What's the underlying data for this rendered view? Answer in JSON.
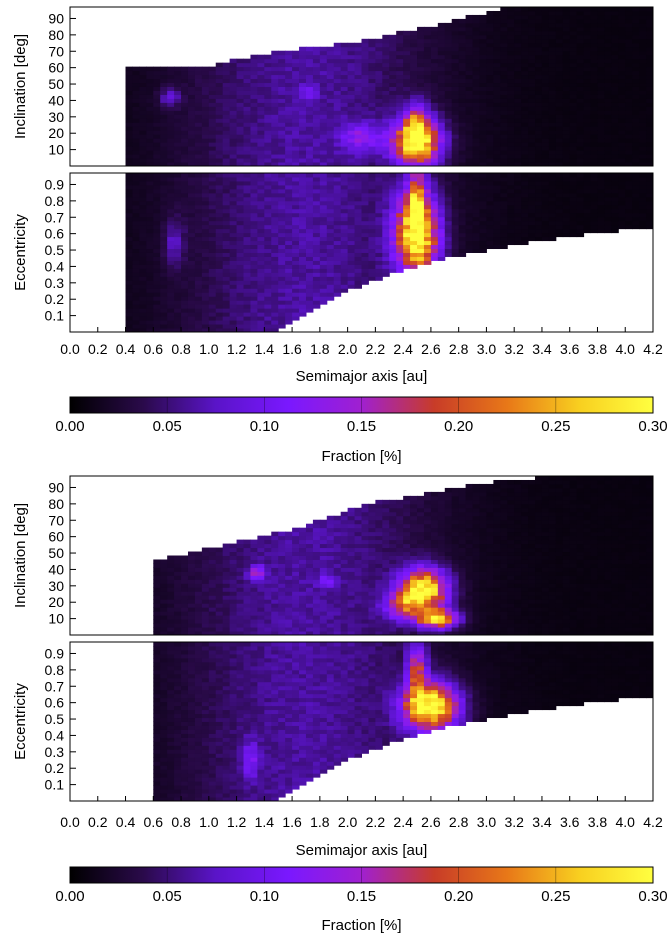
{
  "chart_data": {
    "type": "heatmap",
    "colormap": {
      "stops": [
        "#000000",
        "#2a0a4a",
        "#5a14c8",
        "#7a18ff",
        "#a020d0",
        "#c83c28",
        "#e87818",
        "#f8d020",
        "#ffff40"
      ],
      "range": [
        0,
        0.3
      ]
    },
    "panels": [
      {
        "id": "top",
        "incl": {
          "ylabel": "Inclination [deg]",
          "yticks": [
            "10",
            "20",
            "30",
            "40",
            "50",
            "60",
            "70",
            "80",
            "90"
          ],
          "ylim": [
            0,
            97
          ],
          "x_start": 0.4,
          "y_top": [
            60,
            60,
            70,
            75,
            85,
            96,
            97,
            97
          ],
          "blobs": [
            {
              "x": 2.5,
              "y": 15,
              "sx": 0.12,
              "sy": 10,
              "v": 0.29
            },
            {
              "x": 2.5,
              "y": 28,
              "sx": 0.05,
              "sy": 8,
              "v": 0.12
            },
            {
              "x": 2.1,
              "y": 18,
              "sx": 0.1,
              "sy": 6,
              "v": 0.08
            },
            {
              "x": 0.72,
              "y": 42,
              "sx": 0.05,
              "sy": 4,
              "v": 0.06
            },
            {
              "x": 1.72,
              "y": 45,
              "sx": 0.04,
              "sy": 3,
              "v": 0.05
            }
          ]
        },
        "ecc": {
          "ylabel": "Eccentricity",
          "yticks": [
            "0.1",
            "0.2",
            "0.3",
            "0.4",
            "0.5",
            "0.6",
            "0.7",
            "0.8",
            "0.9"
          ],
          "ylim": [
            0,
            0.97
          ],
          "x_start": 0.4,
          "blobs": [
            {
              "x": 2.5,
              "y": 0.6,
              "sx": 0.11,
              "sy": 0.18,
              "v": 0.29
            },
            {
              "x": 2.5,
              "y": 0.85,
              "sx": 0.04,
              "sy": 0.12,
              "v": 0.12
            },
            {
              "x": 0.75,
              "y": 0.55,
              "sx": 0.05,
              "sy": 0.1,
              "v": 0.05
            }
          ]
        },
        "xlabel": "Semimajor axis [au]",
        "xticks": [
          "0.0",
          "0.2",
          "0.4",
          "0.6",
          "0.8",
          "1.0",
          "1.2",
          "1.4",
          "1.6",
          "1.8",
          "2.0",
          "2.2",
          "2.4",
          "2.6",
          "2.8",
          "3.0",
          "3.2",
          "3.4",
          "3.6",
          "3.8",
          "4.0",
          "4.2"
        ],
        "xlim": [
          0,
          4.2
        ],
        "colorbar": {
          "ticks": [
            "0.00",
            "0.05",
            "0.10",
            "0.15",
            "0.20",
            "0.25",
            "0.30"
          ],
          "label": "Fraction [%]"
        }
      },
      {
        "id": "bottom",
        "incl": {
          "ylabel": "Inclination [deg]",
          "yticks": [
            "10",
            "20",
            "30",
            "40",
            "50",
            "60",
            "70",
            "80",
            "90"
          ],
          "ylim": [
            0,
            97
          ],
          "x_start": 0.6,
          "y_top": [
            45,
            55,
            65,
            80,
            88,
            95,
            97,
            97
          ],
          "blobs": [
            {
              "x": 2.55,
              "y": 28,
              "sx": 0.12,
              "sy": 9,
              "v": 0.27
            },
            {
              "x": 2.65,
              "y": 10,
              "sx": 0.1,
              "sy": 4,
              "v": 0.24
            },
            {
              "x": 2.4,
              "y": 18,
              "sx": 0.1,
              "sy": 6,
              "v": 0.12
            },
            {
              "x": 1.35,
              "y": 38,
              "sx": 0.04,
              "sy": 3,
              "v": 0.12
            },
            {
              "x": 1.85,
              "y": 33,
              "sx": 0.04,
              "sy": 3,
              "v": 0.06
            }
          ]
        },
        "ecc": {
          "ylabel": "Eccentricity",
          "yticks": [
            "0.1",
            "0.2",
            "0.3",
            "0.4",
            "0.5",
            "0.6",
            "0.7",
            "0.8",
            "0.9"
          ],
          "ylim": [
            0,
            0.97
          ],
          "x_start": 0.6,
          "blobs": [
            {
              "x": 2.6,
              "y": 0.58,
              "sx": 0.14,
              "sy": 0.1,
              "v": 0.29
            },
            {
              "x": 2.5,
              "y": 0.8,
              "sx": 0.05,
              "sy": 0.12,
              "v": 0.14
            },
            {
              "x": 1.3,
              "y": 0.25,
              "sx": 0.04,
              "sy": 0.08,
              "v": 0.07
            }
          ]
        },
        "xlabel": "Semimajor axis [au]",
        "xticks": [
          "0.0",
          "0.2",
          "0.4",
          "0.6",
          "0.8",
          "1.0",
          "1.2",
          "1.4",
          "1.6",
          "1.8",
          "2.0",
          "2.2",
          "2.4",
          "2.6",
          "2.8",
          "3.0",
          "3.2",
          "3.4",
          "3.6",
          "3.8",
          "4.0",
          "4.2"
        ],
        "xlim": [
          0,
          4.2
        ],
        "colorbar": {
          "ticks": [
            "0.00",
            "0.05",
            "0.10",
            "0.15",
            "0.20",
            "0.25",
            "0.30"
          ],
          "label": "Fraction [%]"
        }
      }
    ]
  }
}
